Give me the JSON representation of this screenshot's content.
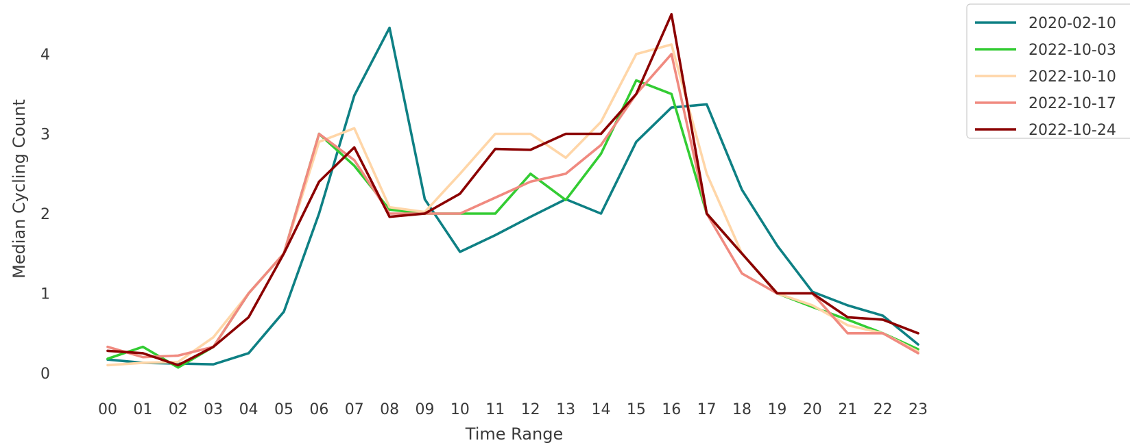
{
  "chart_data": {
    "type": "line",
    "title": "",
    "xlabel": "Time Range",
    "ylabel": "Median Cycling Count",
    "categories": [
      "00",
      "01",
      "02",
      "03",
      "04",
      "05",
      "06",
      "07",
      "08",
      "09",
      "10",
      "11",
      "12",
      "13",
      "14",
      "15",
      "16",
      "17",
      "18",
      "19",
      "20",
      "21",
      "22",
      "23"
    ],
    "yticks": [
      0,
      1,
      2,
      3,
      4
    ],
    "ylim": [
      -0.2,
      4.5
    ],
    "grid": false,
    "legend_position": "top-right-outside",
    "series": [
      {
        "name": "2020-02-10",
        "color": "#0e8084",
        "values": [
          0.17,
          0.13,
          0.12,
          0.11,
          0.25,
          0.77,
          2.0,
          3.48,
          4.33,
          2.18,
          1.52,
          1.73,
          1.96,
          2.18,
          2.0,
          2.9,
          3.33,
          3.37,
          2.3,
          1.6,
          1.02,
          0.85,
          0.72,
          0.36
        ]
      },
      {
        "name": "2022-10-03",
        "color": "#33cc33",
        "values": [
          0.18,
          0.33,
          0.07,
          0.33,
          1.0,
          1.5,
          3.0,
          2.6,
          2.05,
          2.0,
          2.0,
          2.0,
          2.5,
          2.17,
          2.75,
          3.67,
          3.5,
          2.0,
          1.5,
          1.0,
          0.83,
          0.67,
          0.5,
          0.3
        ]
      },
      {
        "name": "2022-10-10",
        "color": "#ffd6a8",
        "values": [
          0.1,
          0.13,
          0.14,
          0.45,
          1.0,
          1.5,
          2.9,
          3.07,
          2.08,
          2.02,
          2.5,
          3.0,
          3.0,
          2.7,
          3.15,
          4.0,
          4.12,
          2.5,
          1.5,
          1.0,
          0.85,
          0.6,
          0.5,
          0.27
        ]
      },
      {
        "name": "2022-10-17",
        "color": "#f08a80",
        "values": [
          0.33,
          0.2,
          0.22,
          0.33,
          1.0,
          1.5,
          3.0,
          2.67,
          2.0,
          2.0,
          2.0,
          2.2,
          2.4,
          2.5,
          2.86,
          3.5,
          4.0,
          2.0,
          1.25,
          1.0,
          1.0,
          0.5,
          0.5,
          0.25
        ]
      },
      {
        "name": "2022-10-24",
        "color": "#8b0000",
        "values": [
          0.28,
          0.25,
          0.1,
          0.33,
          0.7,
          1.5,
          2.4,
          2.83,
          1.96,
          2.0,
          2.25,
          2.81,
          2.8,
          3.0,
          3.0,
          3.5,
          4.5,
          2.0,
          1.5,
          1.0,
          1.0,
          0.7,
          0.67,
          0.5
        ]
      }
    ]
  }
}
